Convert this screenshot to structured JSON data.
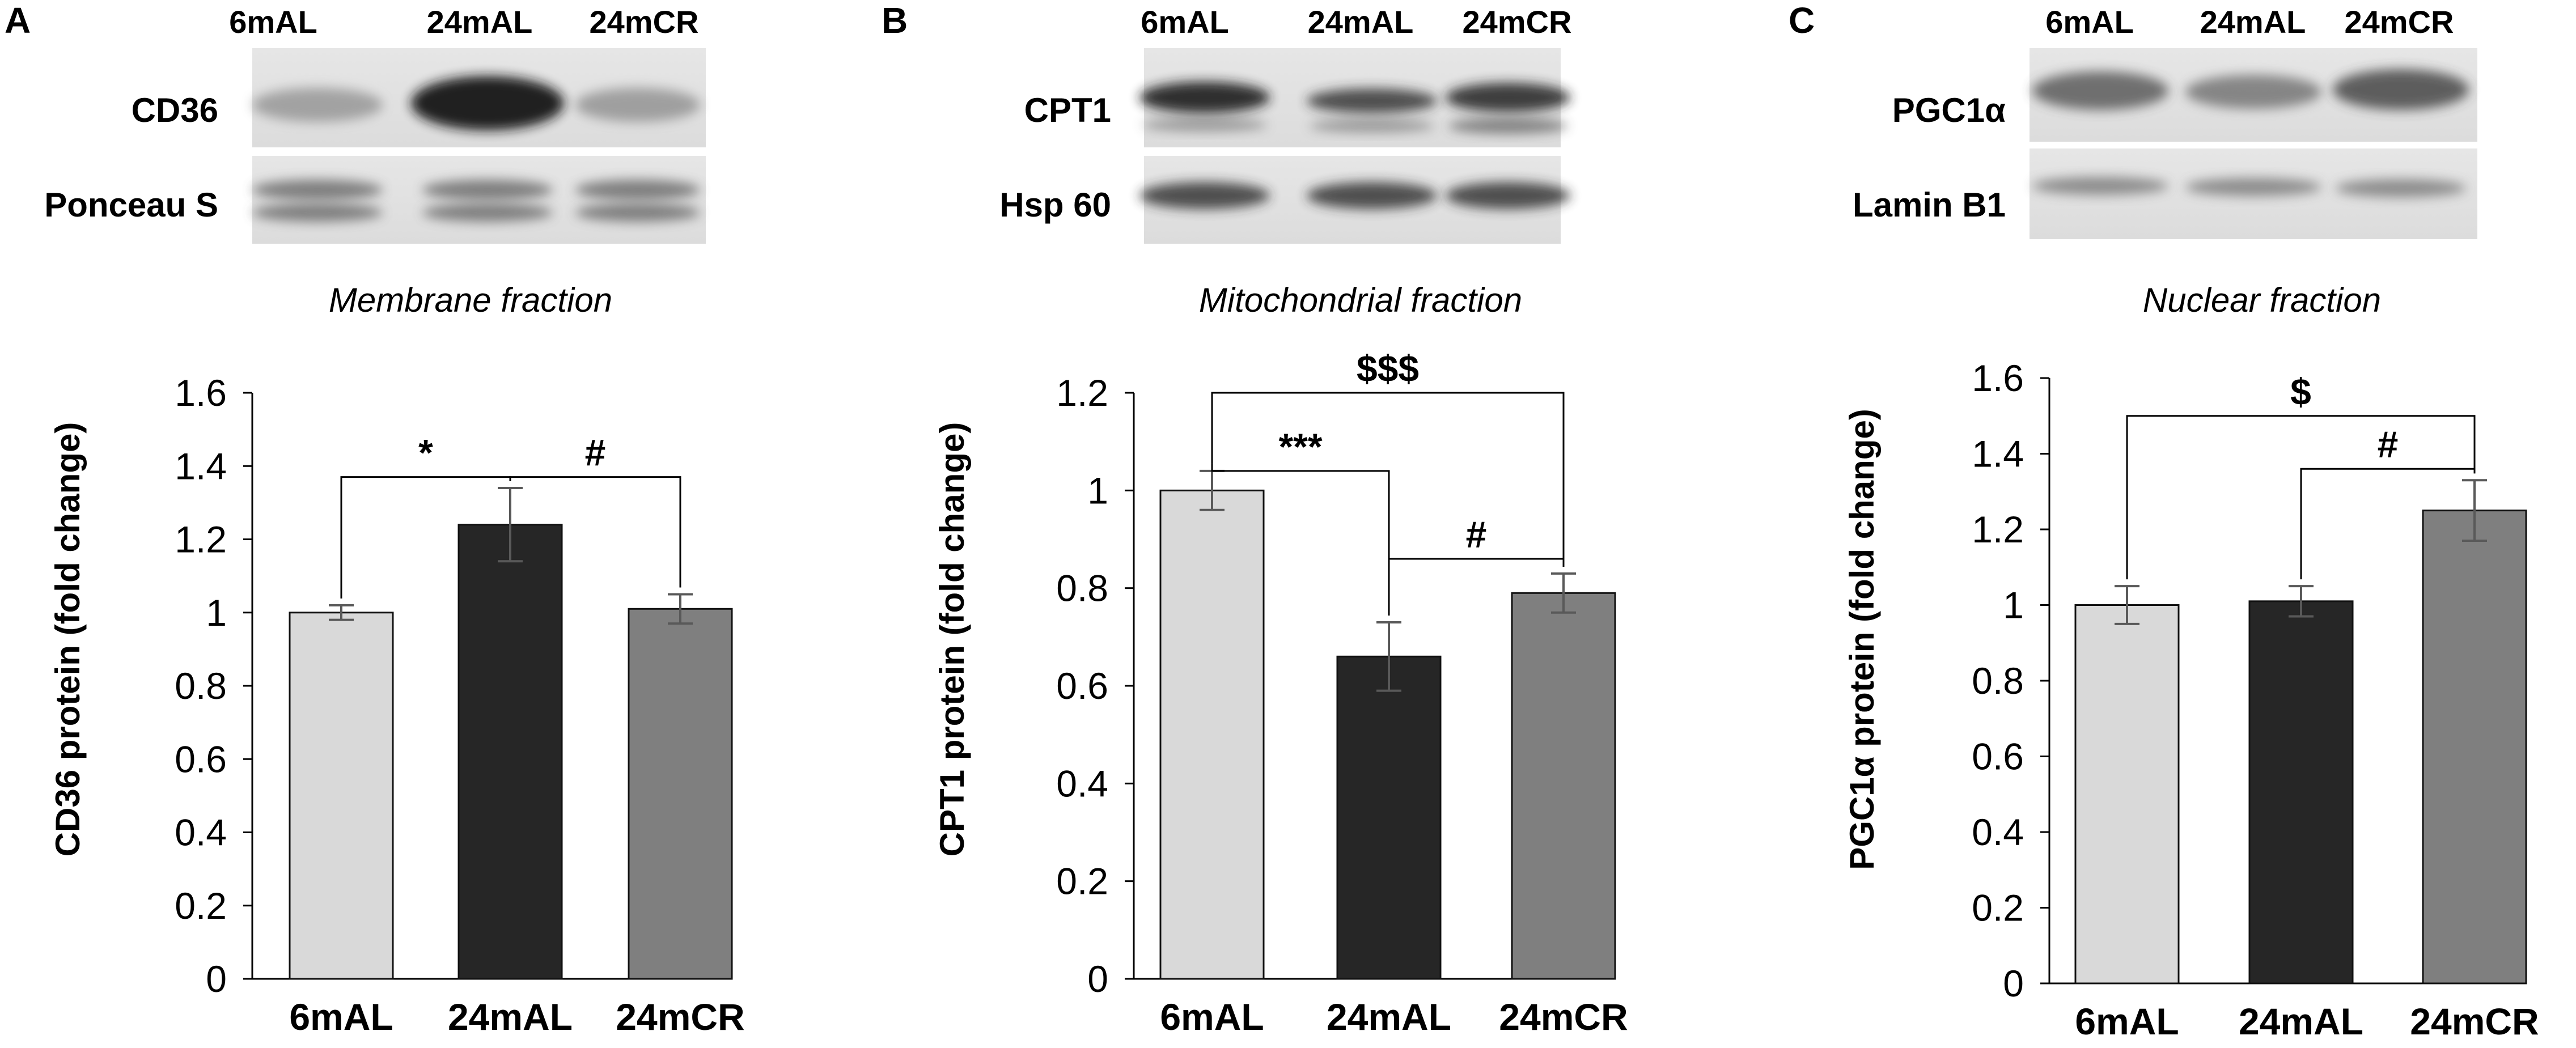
{
  "chart_data": [
    {
      "type": "bar",
      "panel_label": "A",
      "lane_labels": [
        "6mAL",
        "24mAL",
        "24mCR"
      ],
      "blot_labels": [
        "CD36",
        "Ponceau S"
      ],
      "fraction": "Membrane fraction",
      "categories": [
        "6mAL",
        "24mAL",
        "24mCR"
      ],
      "values": [
        1.0,
        1.24,
        1.01
      ],
      "errors": [
        0.02,
        0.1,
        0.04
      ],
      "bar_colors": [
        "#d9d9d9",
        "#262626",
        "#7f7f7f"
      ],
      "ylabel": "CD36 protein (fold change)",
      "ylim": [
        0,
        1.6
      ],
      "yticks": [
        0,
        0.2,
        0.4,
        0.6,
        0.8,
        1,
        1.2,
        1.4,
        1.6
      ],
      "ytick_labels": [
        "0",
        "0.2",
        "0.4",
        "0.6",
        "0.8",
        "1",
        "1.2",
        "1.4",
        "1.6"
      ],
      "annotations": [
        {
          "symbol": "*",
          "from": 0,
          "to": 1,
          "level": 1.37
        },
        {
          "symbol": "#",
          "from": 1,
          "to": 2,
          "level": 1.37
        }
      ]
    },
    {
      "type": "bar",
      "panel_label": "B",
      "lane_labels": [
        "6mAL",
        "24mAL",
        "24mCR"
      ],
      "blot_labels": [
        "CPT1",
        "Hsp 60"
      ],
      "fraction": "Mitochondrial fraction",
      "categories": [
        "6mAL",
        "24mAL",
        "24mCR"
      ],
      "values": [
        1.0,
        0.66,
        0.79
      ],
      "errors": [
        0.04,
        0.07,
        0.04
      ],
      "bar_colors": [
        "#d9d9d9",
        "#262626",
        "#7f7f7f"
      ],
      "ylabel": "CPT1 protein (fold change)",
      "ylim": [
        0,
        1.2
      ],
      "yticks": [
        0,
        0.2,
        0.4,
        0.6,
        0.8,
        1,
        1.2
      ],
      "ytick_labels": [
        "0",
        "0.2",
        "0.4",
        "0.6",
        "0.8",
        "1",
        "1.2"
      ],
      "annotations": [
        {
          "symbol": "$$$",
          "from": 0,
          "to": 2,
          "level": 1.2
        },
        {
          "symbol": "***",
          "from": 0,
          "to": 1,
          "level": 1.04
        },
        {
          "symbol": "#",
          "from": 1,
          "to": 2,
          "level": 0.86
        }
      ]
    },
    {
      "type": "bar",
      "panel_label": "C",
      "lane_labels": [
        "6mAL",
        "24mAL",
        "24mCR"
      ],
      "blot_labels": [
        "PGC1α",
        "Lamin B1"
      ],
      "fraction": "Nuclear fraction",
      "categories": [
        "6mAL",
        "24mAL",
        "24mCR"
      ],
      "values": [
        1.0,
        1.01,
        1.25
      ],
      "errors": [
        0.05,
        0.04,
        0.08
      ],
      "bar_colors": [
        "#d9d9d9",
        "#262626",
        "#7f7f7f"
      ],
      "ylabel": "PGC1α protein (fold change)",
      "ylim": [
        0,
        1.6
      ],
      "yticks": [
        0,
        0.2,
        0.4,
        0.6,
        0.8,
        1,
        1.2,
        1.4,
        1.6
      ],
      "ytick_labels": [
        "0",
        "0.2",
        "0.4",
        "0.6",
        "0.8",
        "1",
        "1.2",
        "1.4",
        "1.6"
      ],
      "annotations": [
        {
          "symbol": "$",
          "from": 0,
          "to": 2,
          "level": 1.5
        },
        {
          "symbol": "#",
          "from": 1,
          "to": 2,
          "level": 1.36
        }
      ]
    }
  ]
}
